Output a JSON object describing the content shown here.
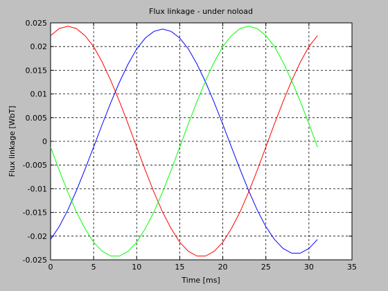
{
  "chart_data": {
    "type": "line",
    "title": "Flux linkage - under noload",
    "x_label": "Time [ms]",
    "y_label": "Flux linkage [WbT]",
    "x": [
      0,
      1,
      2,
      3,
      4,
      5,
      6,
      7,
      8,
      9,
      10,
      11,
      12,
      13,
      14,
      15,
      16,
      17,
      18,
      19,
      20,
      21,
      22,
      23,
      24,
      25,
      26,
      27,
      28,
      29,
      30,
      31
    ],
    "series": [
      {
        "color": "#ff0000",
        "values": [
          0.0223,
          0.0238,
          0.0243,
          0.0238,
          0.0223,
          0.02,
          0.0167,
          0.0128,
          0.0084,
          0.0037,
          -0.0012,
          -0.0061,
          -0.0107,
          -0.0149,
          -0.0184,
          -0.0213,
          -0.0232,
          -0.0242,
          -0.0242,
          -0.0232,
          -0.0213,
          -0.0184,
          -0.0149,
          -0.0107,
          -0.0061,
          -0.0012,
          0.0037,
          0.0084,
          0.0128,
          0.0167,
          0.02,
          0.0223
        ]
      },
      {
        "color": "#0000ff",
        "values": [
          -0.0207,
          -0.018,
          -0.0145,
          -0.0104,
          -0.0059,
          -0.0012,
          0.0036,
          0.0082,
          0.0125,
          0.0163,
          0.0195,
          0.0218,
          0.0232,
          0.0237,
          0.0232,
          0.0218,
          0.0195,
          0.0163,
          0.0125,
          0.0082,
          0.0036,
          -0.0012,
          -0.0059,
          -0.0104,
          -0.0145,
          -0.018,
          -0.0207,
          -0.0226,
          -0.0236,
          -0.0236,
          -0.0226,
          -0.0207
        ]
      },
      {
        "color": "#00ff00",
        "values": [
          -0.0012,
          -0.0061,
          -0.0107,
          -0.0149,
          -0.0184,
          -0.0213,
          -0.0232,
          -0.0242,
          -0.0242,
          -0.0232,
          -0.0213,
          -0.0184,
          -0.0149,
          -0.0107,
          -0.0061,
          -0.0012,
          0.0037,
          0.0084,
          0.0128,
          0.0167,
          0.02,
          0.0223,
          0.0238,
          0.0243,
          0.0238,
          0.0223,
          0.02,
          0.0167,
          0.0128,
          0.0084,
          0.0037,
          -0.0012
        ]
      }
    ],
    "xlim": [
      0,
      35
    ],
    "xticks": [
      0,
      5,
      10,
      15,
      20,
      25,
      30,
      35
    ],
    "ylim": [
      -0.025,
      0.025
    ],
    "yticks": [
      -0.025,
      -0.02,
      -0.015,
      -0.01,
      -0.005,
      0,
      0.005,
      0.01,
      0.015,
      0.02,
      0.025
    ],
    "grid": true
  }
}
